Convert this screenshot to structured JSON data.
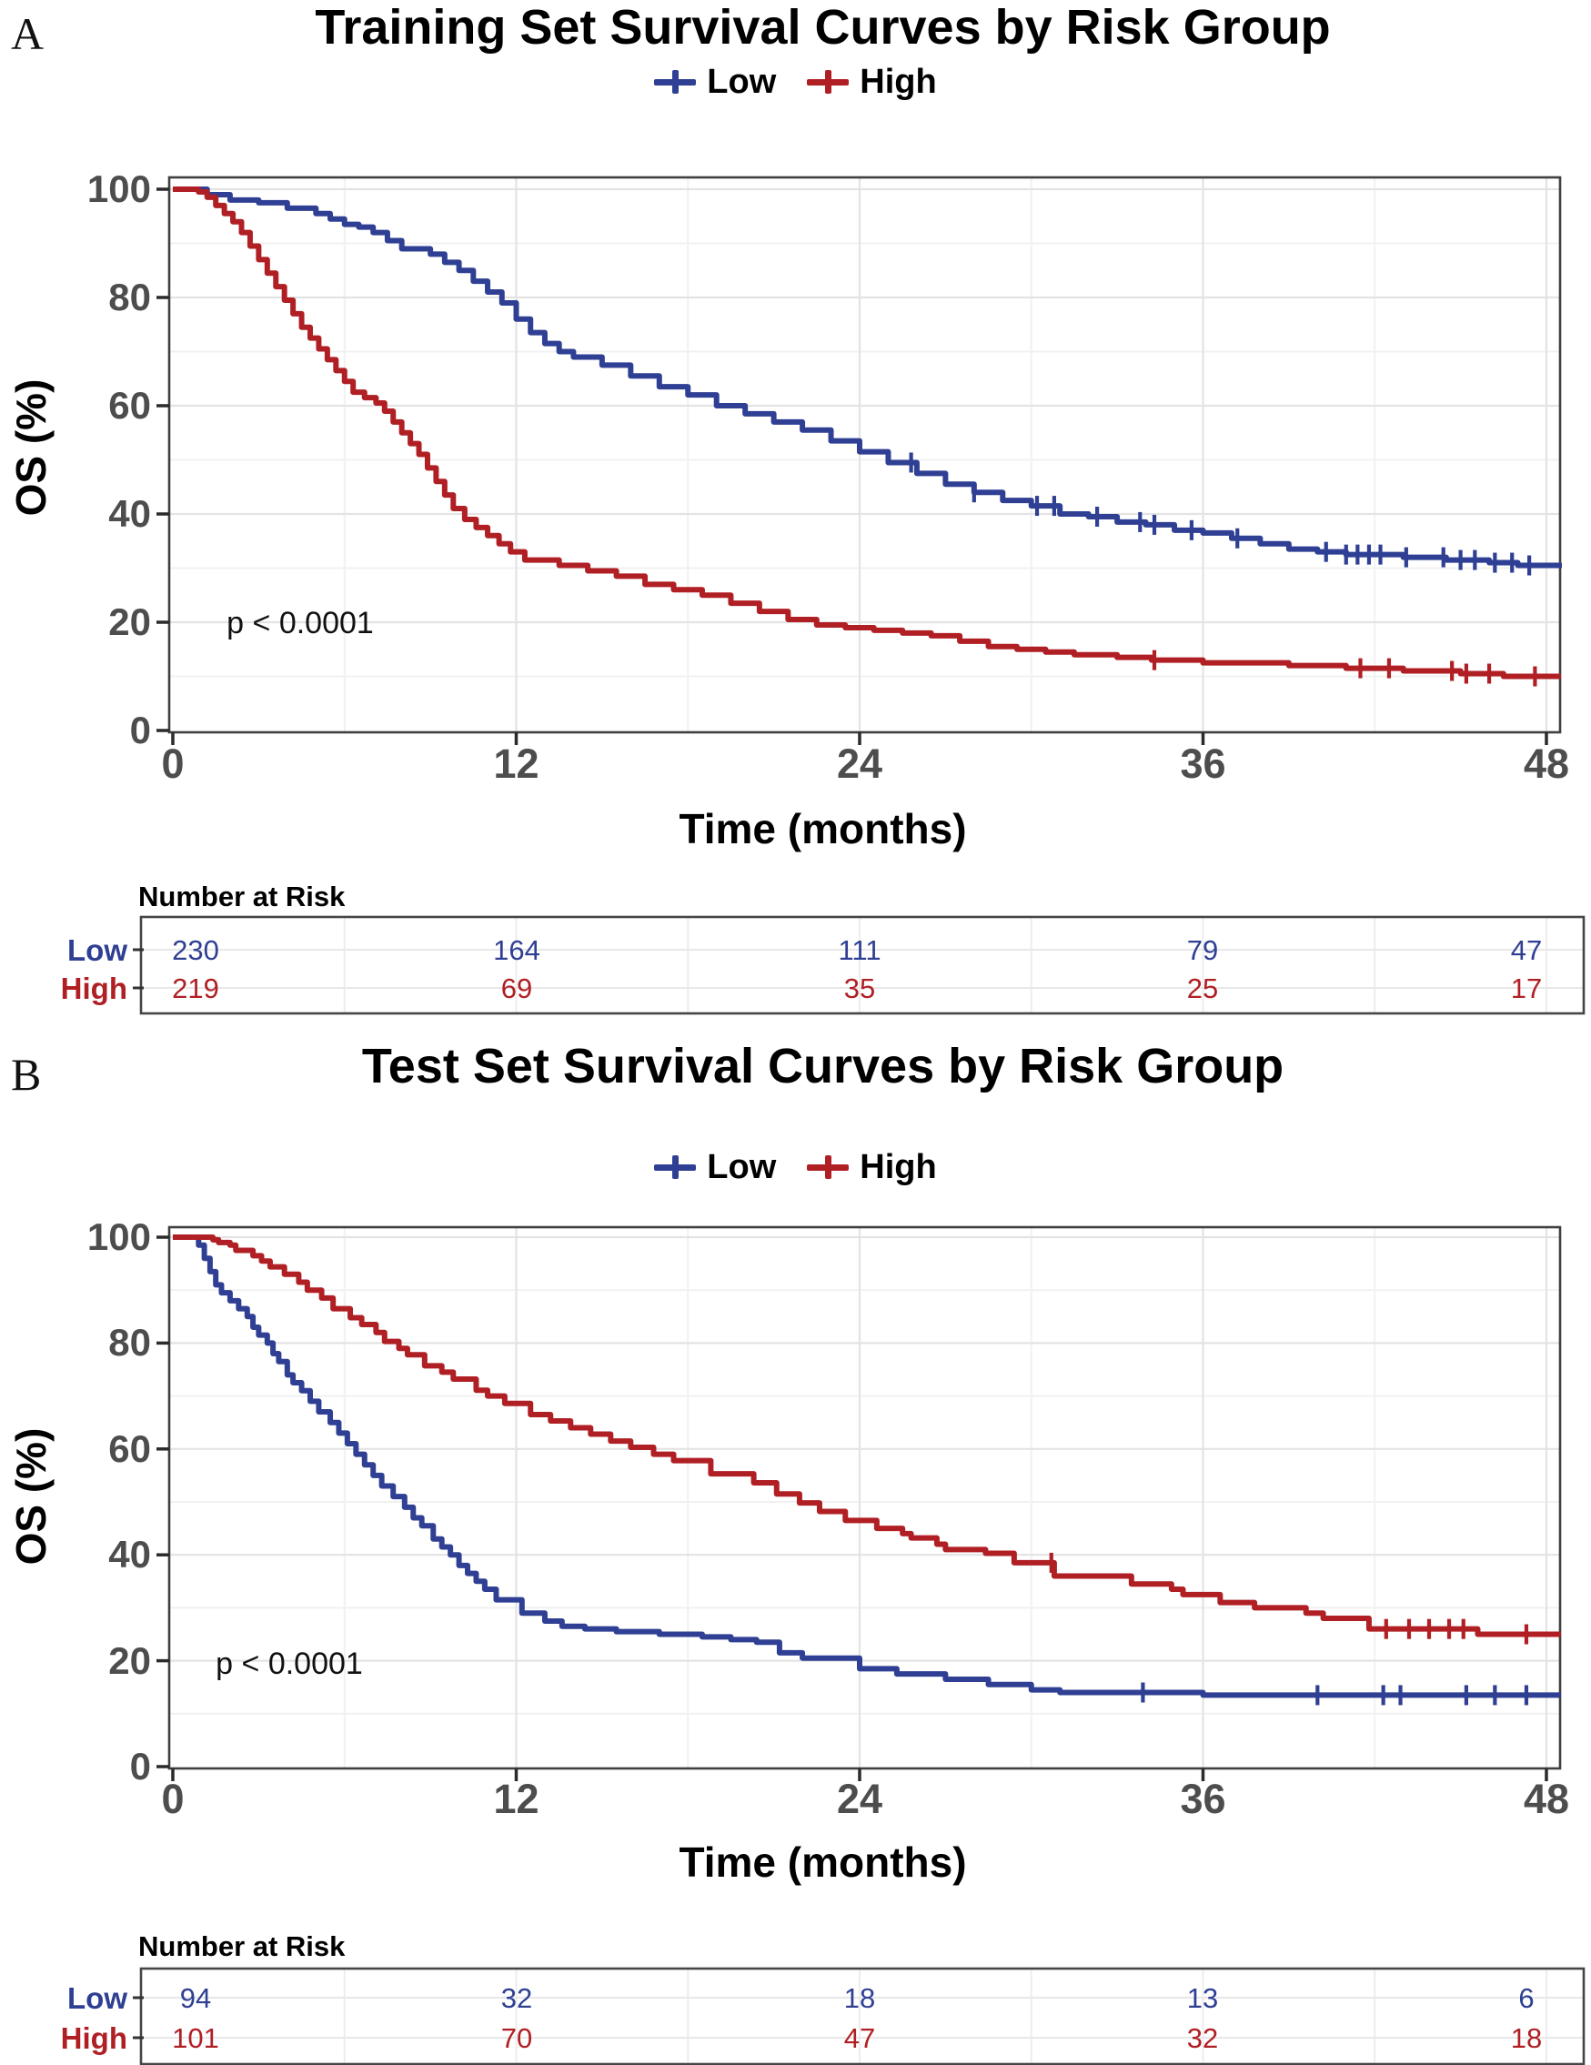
{
  "panel_labels": [
    "A",
    "B"
  ],
  "chart_data": [
    {
      "type": "line",
      "variant": "kaplan_meier_step",
      "title": "Training Set Survival Curves by Risk Group",
      "xlabel": "Time (months)",
      "ylabel": "OS (%)",
      "pvalue": "p < 0.0001",
      "xlim": [
        0,
        48.5
      ],
      "ylim": [
        0,
        100
      ],
      "xticks": [
        0,
        12,
        24,
        36,
        48
      ],
      "yticks": [
        100,
        80,
        60,
        40,
        20,
        0
      ],
      "grid": true,
      "legend_position": "top",
      "series": [
        {
          "name": "Low",
          "color": "#2f3f93",
          "x": [
            0,
            1.2,
            2,
            3,
            4,
            5,
            5.5,
            6,
            6.5,
            7,
            7.5,
            8,
            9,
            9.5,
            10,
            10.5,
            11,
            11.5,
            12,
            12.5,
            13,
            13.5,
            14,
            15,
            16,
            17,
            18,
            19,
            20,
            21,
            22,
            23,
            24,
            25,
            26,
            27,
            28,
            29,
            30,
            31,
            32,
            33,
            34,
            35,
            36,
            37,
            38,
            39,
            40,
            41,
            43,
            44.5,
            46,
            47,
            48.5
          ],
          "y": [
            100,
            99,
            98,
            97.5,
            96.5,
            95.5,
            94.5,
            93.5,
            93,
            92,
            90.5,
            89,
            88,
            86.5,
            85,
            83,
            81,
            79,
            76,
            73.5,
            71.5,
            70,
            69,
            67.5,
            65.5,
            63.5,
            62,
            60,
            58.5,
            57,
            55.5,
            53.5,
            51.5,
            49.5,
            47.5,
            45.5,
            44,
            42.5,
            41.5,
            40,
            39.5,
            38.5,
            38,
            37,
            36.5,
            35.5,
            34.5,
            33.5,
            33,
            32.5,
            32,
            31.5,
            31,
            30.5,
            30
          ],
          "censor_x": [
            25.8,
            28,
            30.2,
            30.8,
            32.3,
            33.8,
            34.3,
            35.6,
            37.2,
            40.3,
            41,
            41.4,
            41.8,
            42.2,
            43.1,
            44.4,
            45,
            45.5,
            46.2,
            46.8,
            47.4
          ]
        },
        {
          "name": "High",
          "color": "#b01f24",
          "x": [
            0,
            0.9,
            1.2,
            1.5,
            1.8,
            2.1,
            2.4,
            2.7,
            3,
            3.3,
            3.6,
            3.9,
            4.2,
            4.5,
            4.8,
            5.1,
            5.4,
            5.7,
            6,
            6.3,
            6.7,
            7.1,
            7.4,
            7.7,
            8,
            8.3,
            8.6,
            8.9,
            9.2,
            9.5,
            9.8,
            10.2,
            10.6,
            11,
            11.4,
            11.8,
            12.3,
            13.5,
            14.5,
            15.5,
            16.5,
            17.5,
            18.5,
            19.5,
            20.5,
            21.5,
            22.5,
            23.5,
            24.5,
            25.5,
            26.5,
            27.5,
            28.5,
            29.5,
            30.5,
            31.5,
            33,
            34.2,
            36,
            39,
            41,
            43,
            45,
            46.5,
            48.5
          ],
          "y": [
            100,
            99.5,
            98.5,
            97,
            95.5,
            94,
            92,
            89.5,
            87,
            84.5,
            82,
            79.5,
            77,
            74.5,
            72.5,
            70.5,
            68.5,
            66.5,
            64.5,
            62.5,
            61.5,
            60.5,
            59,
            57,
            55,
            53,
            51,
            48.5,
            46,
            43.5,
            41,
            39,
            37.5,
            36,
            34.5,
            33,
            31.5,
            30.5,
            29.5,
            28.5,
            27,
            26,
            25,
            23.5,
            22,
            20.5,
            19.5,
            19,
            18.5,
            18,
            17.5,
            16.5,
            15.5,
            15,
            14.5,
            14,
            13.5,
            13,
            12.5,
            12,
            11.5,
            11,
            10.5,
            10,
            10
          ],
          "censor_x": [
            34.3,
            41.5,
            42.5,
            44.7,
            45.2,
            46,
            47.6
          ]
        }
      ],
      "number_at_risk": {
        "title": "Number at Risk",
        "times": [
          0,
          12,
          24,
          36,
          48
        ],
        "rows": [
          {
            "name": "Low",
            "values": [
              230,
              164,
              111,
              79,
              47
            ]
          },
          {
            "name": "High",
            "values": [
              219,
              69,
              35,
              25,
              17
            ]
          }
        ]
      }
    },
    {
      "type": "line",
      "variant": "kaplan_meier_step",
      "title": "Test Set Survival Curves by Risk Group",
      "xlabel": "Time (months)",
      "ylabel": "OS (%)",
      "pvalue": "p < 0.0001",
      "xlim": [
        0,
        48.5
      ],
      "ylim": [
        0,
        100
      ],
      "xticks": [
        0,
        12,
        24,
        36,
        48
      ],
      "yticks": [
        100,
        80,
        60,
        40,
        20,
        0
      ],
      "grid": true,
      "legend_position": "top",
      "series": [
        {
          "name": "Low",
          "color": "#2f3f93",
          "x": [
            0,
            0.9,
            1.1,
            1.3,
            1.5,
            1.7,
            2,
            2.3,
            2.6,
            2.8,
            3,
            3.3,
            3.5,
            3.7,
            4,
            4.2,
            4.5,
            4.8,
            5.1,
            5.5,
            5.8,
            6.1,
            6.4,
            6.7,
            7,
            7.3,
            7.7,
            8.1,
            8.4,
            8.7,
            9.1,
            9.4,
            9.7,
            10,
            10.3,
            10.6,
            10.9,
            11.3,
            12.2,
            13,
            13.6,
            14.4,
            15.5,
            17,
            18.5,
            19.5,
            20.4,
            21.2,
            22,
            24,
            25.3,
            27,
            28.5,
            30,
            31,
            36,
            48.5
          ],
          "y": [
            100,
            98.5,
            96,
            93.5,
            91,
            89.5,
            88,
            86.5,
            85,
            83,
            81.5,
            80,
            78,
            76.5,
            74,
            72.5,
            71,
            69,
            67,
            65,
            63,
            61,
            59,
            57,
            55,
            53,
            51,
            49,
            47,
            45.5,
            43,
            41.5,
            40,
            38,
            36.5,
            35,
            33.5,
            31.5,
            29,
            27.5,
            26.5,
            26,
            25.5,
            25,
            24.5,
            24,
            23.5,
            21.5,
            20.5,
            18.5,
            17.5,
            16.5,
            15.5,
            14.5,
            14,
            13.5,
            13.5
          ],
          "censor_x": [
            33.9,
            40,
            42.3,
            42.9,
            45.2,
            46.2,
            47.3
          ]
        },
        {
          "name": "High",
          "color": "#b01f24",
          "x": [
            0,
            1.4,
            1.6,
            2,
            2.2,
            2.8,
            3.1,
            3.4,
            3.9,
            4.4,
            4.7,
            5.2,
            5.6,
            6.2,
            6.6,
            7.1,
            7.4,
            7.9,
            8.2,
            8.8,
            9.4,
            9.8,
            10.6,
            11,
            11.6,
            12.5,
            13.2,
            13.9,
            14.6,
            15.3,
            16,
            16.8,
            17.5,
            18.8,
            20.3,
            21.1,
            21.9,
            22.6,
            23.5,
            24.6,
            25.5,
            25.8,
            26.7,
            27,
            28.4,
            29.4,
            30.8,
            33.5,
            34.9,
            35.3,
            36.6,
            37.8,
            39.6,
            40.2,
            41.8,
            45.6,
            48.5
          ],
          "y": [
            100,
            99.5,
            99,
            98.5,
            97.5,
            96.5,
            95.5,
            94.4,
            93,
            91.5,
            90,
            88.5,
            86.5,
            84.8,
            83.5,
            82,
            80.3,
            79,
            77.8,
            75.7,
            74.5,
            73.2,
            71.1,
            70,
            68.6,
            66.5,
            65.3,
            64,
            62.8,
            61.5,
            60.3,
            59,
            57.8,
            55.3,
            53.6,
            51.5,
            49.8,
            48.2,
            46.5,
            45,
            44,
            43.2,
            42,
            41,
            40.3,
            38.5,
            36,
            34.5,
            33.5,
            32.5,
            31,
            30,
            29,
            28,
            26,
            25,
            25
          ],
          "censor_x": [
            30.7,
            42.4,
            43.2,
            43.9,
            44.6,
            45.1,
            47.3
          ]
        }
      ],
      "number_at_risk": {
        "title": "Number at Risk",
        "times": [
          0,
          12,
          24,
          36,
          48
        ],
        "rows": [
          {
            "name": "Low",
            "values": [
              94,
              32,
              18,
              13,
              6
            ]
          },
          {
            "name": "High",
            "values": [
              101,
              70,
              47,
              32,
              18
            ]
          }
        ]
      }
    }
  ]
}
